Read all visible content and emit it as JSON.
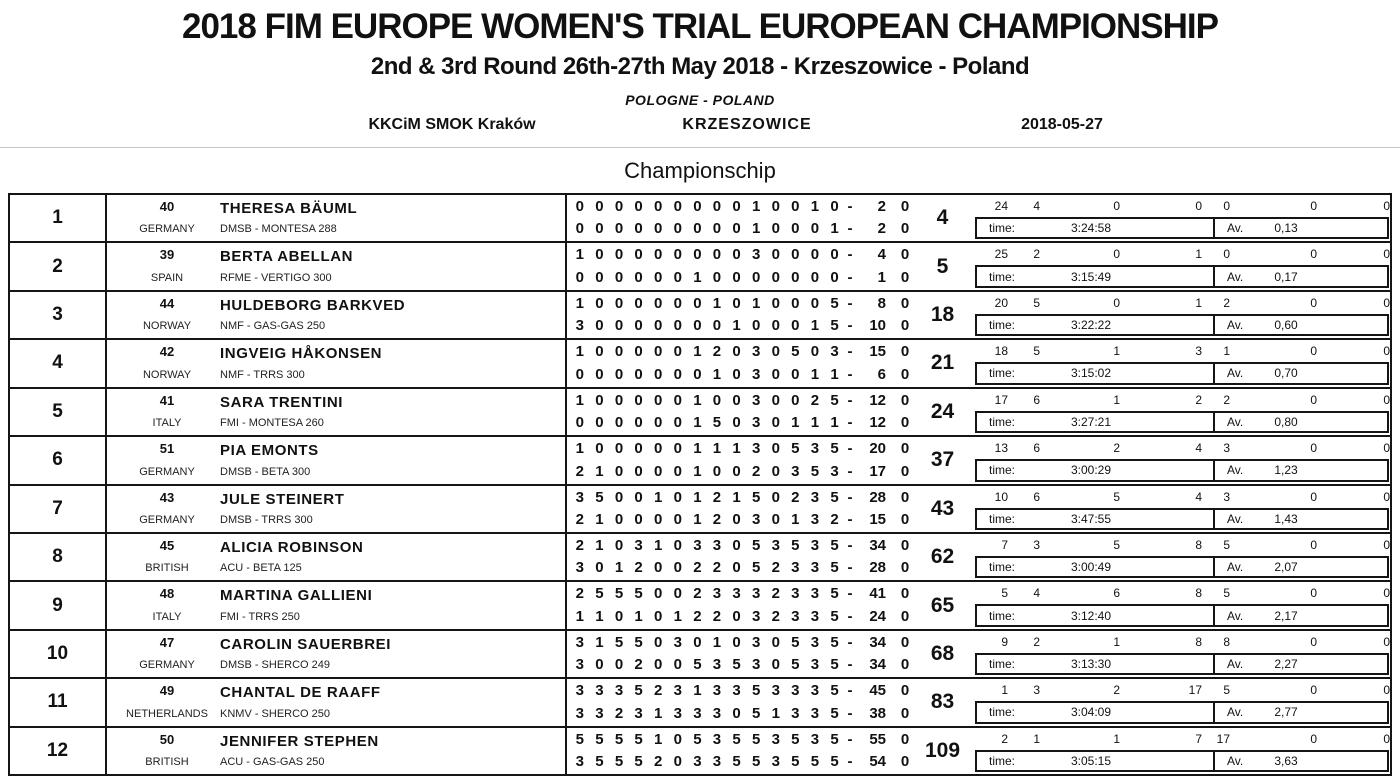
{
  "header": {
    "title": "2018 FIM EUROPE WOMEN'S TRIAL EUROPEAN CHAMPIONSHIP",
    "subtitle": "2nd & 3rd Round 26th-27th May 2018 - Krzeszowice - Poland",
    "country_line": "POLOGNE - POLAND",
    "organizer": "KKCiM SMOK Kraków",
    "venue": "KRZESZOWICE",
    "date": "2018-05-27",
    "section_title": "Championschip"
  },
  "table": {
    "time_label": "time:",
    "avg_label": "Av.",
    "dash": "-",
    "riders": [
      {
        "rank": "1",
        "number": "40",
        "name": "THERESA BÄUML",
        "country": "GERMANY",
        "team": "DMSB - MONTESA 288",
        "lap1": [
          "0",
          "0",
          "0",
          "0",
          "0",
          "0",
          "0",
          "0",
          "0",
          "1",
          "0",
          "0",
          "1",
          "0"
        ],
        "lap1_total": "2",
        "lap1_extra": "0",
        "lap2": [
          "0",
          "0",
          "0",
          "0",
          "0",
          "0",
          "0",
          "0",
          "0",
          "1",
          "0",
          "0",
          "0",
          "1"
        ],
        "lap2_total": "2",
        "lap2_extra": "0",
        "total": "4",
        "counts": [
          "24",
          "4",
          "0",
          "0",
          "0",
          "0",
          "0"
        ],
        "time": "3:24:58",
        "average": "0,13"
      },
      {
        "rank": "2",
        "number": "39",
        "name": "BERTA ABELLAN",
        "country": "SPAIN",
        "team": "RFME - VERTIGO 300",
        "lap1": [
          "1",
          "0",
          "0",
          "0",
          "0",
          "0",
          "0",
          "0",
          "0",
          "3",
          "0",
          "0",
          "0",
          "0"
        ],
        "lap1_total": "4",
        "lap1_extra": "0",
        "lap2": [
          "0",
          "0",
          "0",
          "0",
          "0",
          "0",
          "1",
          "0",
          "0",
          "0",
          "0",
          "0",
          "0",
          "0"
        ],
        "lap2_total": "1",
        "lap2_extra": "0",
        "total": "5",
        "counts": [
          "25",
          "2",
          "0",
          "1",
          "0",
          "0",
          "0"
        ],
        "time": "3:15:49",
        "average": "0,17"
      },
      {
        "rank": "3",
        "number": "44",
        "name": "HULDEBORG BARKVED",
        "country": "NORWAY",
        "team": "NMF - GAS-GAS 250",
        "lap1": [
          "1",
          "0",
          "0",
          "0",
          "0",
          "0",
          "0",
          "1",
          "0",
          "1",
          "0",
          "0",
          "0",
          "5"
        ],
        "lap1_total": "8",
        "lap1_extra": "0",
        "lap2": [
          "3",
          "0",
          "0",
          "0",
          "0",
          "0",
          "0",
          "0",
          "1",
          "0",
          "0",
          "0",
          "1",
          "5"
        ],
        "lap2_total": "10",
        "lap2_extra": "0",
        "total": "18",
        "counts": [
          "20",
          "5",
          "0",
          "1",
          "2",
          "0",
          "0"
        ],
        "time": "3:22:22",
        "average": "0,60"
      },
      {
        "rank": "4",
        "number": "42",
        "name": "INGVEIG HÅKONSEN",
        "country": "NORWAY",
        "team": "NMF - TRRS 300",
        "lap1": [
          "1",
          "0",
          "0",
          "0",
          "0",
          "0",
          "1",
          "2",
          "0",
          "3",
          "0",
          "5",
          "0",
          "3"
        ],
        "lap1_total": "15",
        "lap1_extra": "0",
        "lap2": [
          "0",
          "0",
          "0",
          "0",
          "0",
          "0",
          "0",
          "1",
          "0",
          "3",
          "0",
          "0",
          "1",
          "1"
        ],
        "lap2_total": "6",
        "lap2_extra": "0",
        "total": "21",
        "counts": [
          "18",
          "5",
          "1",
          "3",
          "1",
          "0",
          "0"
        ],
        "time": "3:15:02",
        "average": "0,70"
      },
      {
        "rank": "5",
        "number": "41",
        "name": "SARA TRENTINI",
        "country": "ITALY",
        "team": "FMI - MONTESA 260",
        "lap1": [
          "1",
          "0",
          "0",
          "0",
          "0",
          "0",
          "1",
          "0",
          "0",
          "3",
          "0",
          "0",
          "2",
          "5"
        ],
        "lap1_total": "12",
        "lap1_extra": "0",
        "lap2": [
          "0",
          "0",
          "0",
          "0",
          "0",
          "0",
          "1",
          "5",
          "0",
          "3",
          "0",
          "1",
          "1",
          "1"
        ],
        "lap2_total": "12",
        "lap2_extra": "0",
        "total": "24",
        "counts": [
          "17",
          "6",
          "1",
          "2",
          "2",
          "0",
          "0"
        ],
        "time": "3:27:21",
        "average": "0,80"
      },
      {
        "rank": "6",
        "number": "51",
        "name": "PIA EMONTS",
        "country": "GERMANY",
        "team": "DMSB - BETA 300",
        "lap1": [
          "1",
          "0",
          "0",
          "0",
          "0",
          "0",
          "1",
          "1",
          "1",
          "3",
          "0",
          "5",
          "3",
          "5"
        ],
        "lap1_total": "20",
        "lap1_extra": "0",
        "lap2": [
          "2",
          "1",
          "0",
          "0",
          "0",
          "0",
          "1",
          "0",
          "0",
          "2",
          "0",
          "3",
          "5",
          "3"
        ],
        "lap2_total": "17",
        "lap2_extra": "0",
        "total": "37",
        "counts": [
          "13",
          "6",
          "2",
          "4",
          "3",
          "0",
          "0"
        ],
        "time": "3:00:29",
        "average": "1,23"
      },
      {
        "rank": "7",
        "number": "43",
        "name": "JULE STEINERT",
        "country": "GERMANY",
        "team": "DMSB - TRRS 300",
        "lap1": [
          "3",
          "5",
          "0",
          "0",
          "1",
          "0",
          "1",
          "2",
          "1",
          "5",
          "0",
          "2",
          "3",
          "5"
        ],
        "lap1_total": "28",
        "lap1_extra": "0",
        "lap2": [
          "2",
          "1",
          "0",
          "0",
          "0",
          "0",
          "1",
          "2",
          "0",
          "3",
          "0",
          "1",
          "3",
          "2"
        ],
        "lap2_total": "15",
        "lap2_extra": "0",
        "total": "43",
        "counts": [
          "10",
          "6",
          "5",
          "4",
          "3",
          "0",
          "0"
        ],
        "time": "3:47:55",
        "average": "1,43"
      },
      {
        "rank": "8",
        "number": "45",
        "name": "ALICIA ROBINSON",
        "country": "BRITISH",
        "team": "ACU - BETA 125",
        "lap1": [
          "2",
          "1",
          "0",
          "3",
          "1",
          "0",
          "3",
          "3",
          "0",
          "5",
          "3",
          "5",
          "3",
          "5"
        ],
        "lap1_total": "34",
        "lap1_extra": "0",
        "lap2": [
          "3",
          "0",
          "1",
          "2",
          "0",
          "0",
          "2",
          "2",
          "0",
          "5",
          "2",
          "3",
          "3",
          "5"
        ],
        "lap2_total": "28",
        "lap2_extra": "0",
        "total": "62",
        "counts": [
          "7",
          "3",
          "5",
          "8",
          "5",
          "0",
          "0"
        ],
        "time": "3:00:49",
        "average": "2,07"
      },
      {
        "rank": "9",
        "number": "48",
        "name": "MARTINA GALLIENI",
        "country": "ITALY",
        "team": "FMI - TRRS 250",
        "lap1": [
          "2",
          "5",
          "5",
          "5",
          "0",
          "0",
          "2",
          "3",
          "3",
          "3",
          "2",
          "3",
          "3",
          "5"
        ],
        "lap1_total": "41",
        "lap1_extra": "0",
        "lap2": [
          "1",
          "1",
          "0",
          "1",
          "0",
          "1",
          "2",
          "2",
          "0",
          "3",
          "2",
          "3",
          "3",
          "5"
        ],
        "lap2_total": "24",
        "lap2_extra": "0",
        "total": "65",
        "counts": [
          "5",
          "4",
          "6",
          "8",
          "5",
          "0",
          "0"
        ],
        "time": "3:12:40",
        "average": "2,17"
      },
      {
        "rank": "10",
        "number": "47",
        "name": "CAROLIN SAUERBREI",
        "country": "GERMANY",
        "team": "DMSB - SHERCO 249",
        "lap1": [
          "3",
          "1",
          "5",
          "5",
          "0",
          "3",
          "0",
          "1",
          "0",
          "3",
          "0",
          "5",
          "3",
          "5"
        ],
        "lap1_total": "34",
        "lap1_extra": "0",
        "lap2": [
          "3",
          "0",
          "0",
          "2",
          "0",
          "0",
          "5",
          "3",
          "5",
          "3",
          "0",
          "5",
          "3",
          "5"
        ],
        "lap2_total": "34",
        "lap2_extra": "0",
        "total": "68",
        "counts": [
          "9",
          "2",
          "1",
          "8",
          "8",
          "0",
          "0"
        ],
        "time": "3:13:30",
        "average": "2,27"
      },
      {
        "rank": "11",
        "number": "49",
        "name": "CHANTAL DE RAAFF",
        "country": "NETHERLANDS",
        "team": "KNMV - SHERCO 250",
        "lap1": [
          "3",
          "3",
          "3",
          "5",
          "2",
          "3",
          "1",
          "3",
          "3",
          "5",
          "3",
          "3",
          "3",
          "5"
        ],
        "lap1_total": "45",
        "lap1_extra": "0",
        "lap2": [
          "3",
          "3",
          "2",
          "3",
          "1",
          "3",
          "3",
          "3",
          "0",
          "5",
          "1",
          "3",
          "3",
          "5"
        ],
        "lap2_total": "38",
        "lap2_extra": "0",
        "total": "83",
        "counts": [
          "1",
          "3",
          "2",
          "17",
          "5",
          "0",
          "0"
        ],
        "time": "3:04:09",
        "average": "2,77"
      },
      {
        "rank": "12",
        "number": "50",
        "name": "JENNIFER STEPHEN",
        "country": "BRITISH",
        "team": "ACU - GAS-GAS 250",
        "lap1": [
          "5",
          "5",
          "5",
          "5",
          "1",
          "0",
          "5",
          "3",
          "5",
          "5",
          "3",
          "5",
          "3",
          "5"
        ],
        "lap1_total": "55",
        "lap1_extra": "0",
        "lap2": [
          "3",
          "5",
          "5",
          "5",
          "2",
          "0",
          "3",
          "3",
          "5",
          "5",
          "3",
          "5",
          "5",
          "5"
        ],
        "lap2_total": "54",
        "lap2_extra": "0",
        "total": "109",
        "counts": [
          "2",
          "1",
          "1",
          "7",
          "17",
          "0",
          "0"
        ],
        "time": "3:05:15",
        "average": "3,63"
      }
    ]
  }
}
